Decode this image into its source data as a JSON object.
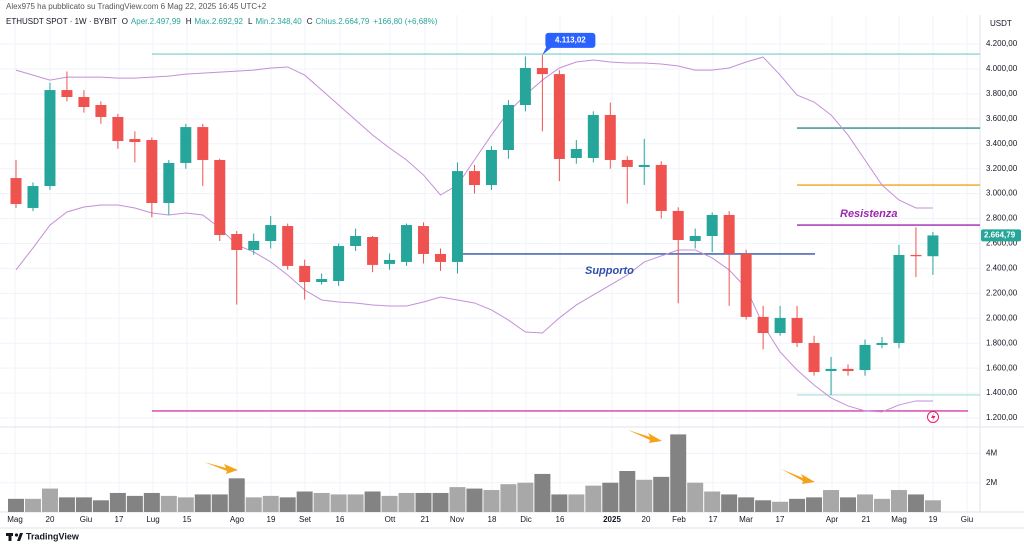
{
  "chart_data": {
    "type": "candlestick",
    "header": {
      "publisher": "Alex975 ha pubblicato su TradingView.com 6 Mag 22, 2025 16:45 UTC+2",
      "symbol": "ETHUSDT SPOT · 1W · BYBIT",
      "legend": [
        [
          "O",
          "Aper.2.497,99"
        ],
        [
          "H",
          "Max.2.692,92"
        ],
        [
          "L",
          "Min.2.348,40"
        ],
        [
          "C",
          "Chius.2.664,79"
        ]
      ],
      "change": "+166,80 (+6,68%)"
    },
    "y_axis_title": "USDT",
    "up_color": "#26a69a",
    "down_color": "#ef5350",
    "ylim": [
      1144,
      4433
    ],
    "yticks": [
      {
        "value": 1200,
        "label": "1.200,00"
      },
      {
        "value": 1400,
        "label": "1.400,00"
      },
      {
        "value": 1600,
        "label": "1.600,00"
      },
      {
        "value": 1800,
        "label": "1.800,00"
      },
      {
        "value": 2000,
        "label": "2.000,00"
      },
      {
        "value": 2200,
        "label": "2.200,00"
      },
      {
        "value": 2400,
        "label": "2.400,00"
      },
      {
        "value": 2600,
        "label": "2.600,00"
      },
      {
        "value": 2800,
        "label": "2.800,00"
      },
      {
        "value": 3000,
        "label": "3.000,00"
      },
      {
        "value": 3200,
        "label": "3.200,00"
      },
      {
        "value": 3400,
        "label": "3.400,00"
      },
      {
        "value": 3600,
        "label": "3.600,00"
      },
      {
        "value": 3800,
        "label": "3.800,00"
      },
      {
        "value": 4000,
        "label": "4.000,00"
      },
      {
        "value": 4200,
        "label": "4.200,00"
      }
    ],
    "grid": true,
    "x_labels": [
      "Mag",
      "20",
      "Giu",
      "17",
      "Lug",
      "15",
      "Ago",
      "19",
      "Set",
      "16",
      "Ott",
      "21",
      "Nov",
      "18",
      "Dic",
      "16",
      "2025",
      "20",
      "Feb",
      "17",
      "Mar",
      "17",
      "Apr",
      "21",
      "Mag",
      "19",
      "Giu"
    ],
    "ohlc": [
      [
        3125,
        3270,
        2885,
        2917
      ],
      [
        2885,
        3090,
        2860,
        3061
      ],
      [
        3061,
        3890,
        3030,
        3831
      ],
      [
        3831,
        3980,
        3740,
        3775
      ],
      [
        3775,
        3830,
        3650,
        3695
      ],
      [
        3711,
        3740,
        3560,
        3615
      ],
      [
        3615,
        3640,
        3360,
        3422
      ],
      [
        3438,
        3500,
        3250,
        3414
      ],
      [
        3430,
        3450,
        2810,
        2925
      ],
      [
        2925,
        3270,
        2830,
        3246
      ],
      [
        3246,
        3560,
        3200,
        3534
      ],
      [
        3534,
        3560,
        3060,
        3270
      ],
      [
        3270,
        3280,
        2620,
        2668
      ],
      [
        2676,
        2700,
        2110,
        2548
      ],
      [
        2548,
        2680,
        2510,
        2620
      ],
      [
        2620,
        2820,
        2560,
        2748
      ],
      [
        2740,
        2760,
        2390,
        2420
      ],
      [
        2420,
        2470,
        2150,
        2291
      ],
      [
        2291,
        2360,
        2270,
        2315
      ],
      [
        2299,
        2600,
        2260,
        2580
      ],
      [
        2580,
        2720,
        2540,
        2660
      ],
      [
        2652,
        2660,
        2370,
        2428
      ],
      [
        2436,
        2520,
        2390,
        2468
      ],
      [
        2452,
        2760,
        2420,
        2748
      ],
      [
        2740,
        2770,
        2440,
        2516
      ],
      [
        2516,
        2560,
        2380,
        2452
      ],
      [
        2452,
        3250,
        2360,
        3181
      ],
      [
        3181,
        3230,
        3000,
        3069
      ],
      [
        3069,
        3380,
        3030,
        3350
      ],
      [
        3350,
        3750,
        3280,
        3711
      ],
      [
        3711,
        4100,
        3660,
        4008
      ],
      [
        4008,
        4113.02,
        3500,
        3959
      ],
      [
        3959,
        3990,
        3100,
        3278
      ],
      [
        3286,
        3430,
        3240,
        3358
      ],
      [
        3286,
        3660,
        3250,
        3631
      ],
      [
        3631,
        3730,
        3200,
        3270
      ],
      [
        3270,
        3300,
        2920,
        3214
      ],
      [
        3214,
        3440,
        3070,
        3230
      ],
      [
        3230,
        3260,
        2800,
        2861
      ],
      [
        2861,
        2890,
        2120,
        2628
      ],
      [
        2620,
        2720,
        2560,
        2660
      ],
      [
        2660,
        2850,
        2530,
        2829
      ],
      [
        2829,
        2860,
        2100,
        2516
      ],
      [
        2516,
        2550,
        1990,
        2011
      ],
      [
        2011,
        2100,
        1750,
        1882
      ],
      [
        1882,
        2100,
        1860,
        2003
      ],
      [
        2003,
        2100,
        1770,
        1802
      ],
      [
        1802,
        1860,
        1540,
        1569
      ],
      [
        1577,
        1690,
        1385,
        1594
      ],
      [
        1594,
        1630,
        1540,
        1577
      ],
      [
        1585,
        1830,
        1540,
        1786
      ],
      [
        1786,
        1850,
        1760,
        1802
      ],
      [
        1802,
        2590,
        1760,
        2508
      ],
      [
        2508,
        2730,
        2330,
        2497.99
      ],
      [
        2497.99,
        2692.92,
        2348.4,
        2664.79
      ]
    ],
    "bands": [
      {
        "name": "BB upper",
        "color": "#c48fd9",
        "values": [
          3991,
          3951,
          3911,
          3935,
          3935,
          3935,
          3927,
          3927,
          3935,
          3943,
          3959,
          3967,
          3975,
          3983,
          3991,
          4008,
          4016,
          3951,
          3831,
          3711,
          3591,
          3470,
          3366,
          3270,
          3149,
          2989,
          3069,
          3270,
          3470,
          3655,
          3791,
          3911,
          4008,
          4056,
          4072,
          4056,
          4048,
          4048,
          4040,
          4024,
          3991,
          3991,
          4008,
          4056,
          4096,
          3951,
          3791,
          3735,
          3631,
          3470,
          3270,
          3069,
          2949,
          2885,
          2885
        ]
      },
      {
        "name": "BB lower",
        "color": "#c48fd9",
        "values": [
          2388,
          2564,
          2748,
          2853,
          2893,
          2909,
          2909,
          2885,
          2845,
          2829,
          2845,
          2829,
          2724,
          2588,
          2532,
          2452,
          2347,
          2227,
          2147,
          2131,
          2123,
          2107,
          2099,
          2099,
          2131,
          2171,
          2147,
          2123,
          2067,
          1986,
          1890,
          1882,
          2003,
          2107,
          2187,
          2267,
          2347,
          2452,
          2500,
          2548,
          2548,
          2484,
          2388,
          2243,
          1946,
          1730,
          1585,
          1465,
          1361,
          1297,
          1257,
          1249,
          1305,
          1337,
          1337
        ]
      }
    ],
    "volume": [
      900000,
      900000,
      1600000,
      1000000,
      1000000,
      800000,
      1300000,
      1100000,
      1300000,
      1100000,
      1000000,
      1200000,
      1200000,
      2300000,
      1000000,
      1100000,
      1000000,
      1400000,
      1300000,
      1200000,
      1200000,
      1400000,
      1100000,
      1300000,
      1300000,
      1300000,
      1700000,
      1600000,
      1500000,
      1900000,
      2000000,
      2600000,
      1200000,
      1200000,
      1800000,
      2000000,
      2800000,
      2200000,
      2400000,
      5300000,
      2000000,
      1400000,
      1200000,
      1000000,
      800000,
      700000,
      900000,
      1000000,
      1500000,
      1000000,
      1200000,
      900000,
      1500000,
      1200000,
      800000
    ],
    "volume_ylim": [
      0,
      5600000
    ],
    "volume_yticks": [
      {
        "value": 2000000,
        "label": "2M"
      },
      {
        "value": 4000000,
        "label": "4M"
      }
    ],
    "hlines": [
      {
        "value": 4120,
        "color": "#8fd6d3"
      },
      {
        "value": 3526,
        "color": "#2a8a8f"
      },
      {
        "value": 3069,
        "color": "#f7a21b"
      },
      {
        "value": 2748,
        "color": "#9c27b0",
        "label": "Resistenza"
      },
      {
        "value": 2516,
        "color": "#2f4fa8",
        "label": "Supporto"
      },
      {
        "value": 1385,
        "color": "#b2e4e0"
      },
      {
        "value": 1257,
        "color": "#d63fa8"
      }
    ],
    "annotation": {
      "value": 4113.02,
      "label": "4.113,02"
    },
    "last_price": {
      "value": 2664.79,
      "label": "2.664,79"
    },
    "footer": "TradingView"
  }
}
